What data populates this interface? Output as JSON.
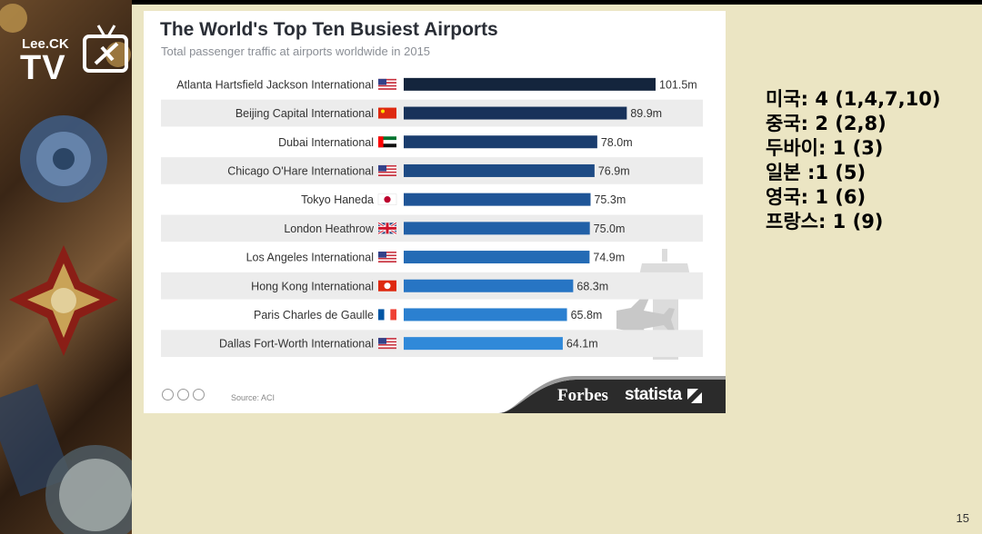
{
  "channel": {
    "name_small": "Lee.CK",
    "name_big": "TV"
  },
  "chart_data": {
    "type": "bar",
    "orientation": "horizontal",
    "title": "The World's Top Ten Busiest Airports",
    "subtitle": "Total passenger traffic at airports worldwide in 2015",
    "categories": [
      "Atlanta Hartsfield Jackson International",
      "Beijing Capital International",
      "Dubai International",
      "Chicago O'Hare International",
      "Tokyo Haneda",
      "London Heathrow",
      "Los Angeles International",
      "Hong Kong International",
      "Paris Charles de Gaulle",
      "Dallas Fort-Worth International"
    ],
    "flags": [
      "us",
      "cn",
      "ae",
      "us",
      "jp",
      "gb",
      "us",
      "hk",
      "fr",
      "us"
    ],
    "values": [
      101.5,
      89.9,
      78.0,
      76.9,
      75.3,
      75.0,
      74.9,
      68.3,
      65.8,
      64.1
    ],
    "labels": [
      "101.5m",
      "89.9m",
      "78.0m",
      "76.9m",
      "75.3m",
      "75.0m",
      "74.9m",
      "68.3m",
      "65.8m",
      "64.1m"
    ],
    "xlim": [
      0,
      101.5
    ],
    "bar_colors": [
      "#14253d",
      "#18325a",
      "#1a3d6e",
      "#1d4a84",
      "#1f5597",
      "#2160a7",
      "#246bb5",
      "#2775c4",
      "#2b80d0",
      "#3089d9"
    ],
    "stripe_color": "#ececec",
    "source": "Source: ACI",
    "brands": [
      "Forbes",
      "statista"
    ]
  },
  "annotations": [
    "미국: 4 (1,4,7,10)",
    "중국: 2 (2,8)",
    "두바이: 1 (3)",
    "일본 :1 (5)",
    "영국: 1 (6)",
    "프랑스: 1 (9)"
  ],
  "page_number": "15"
}
